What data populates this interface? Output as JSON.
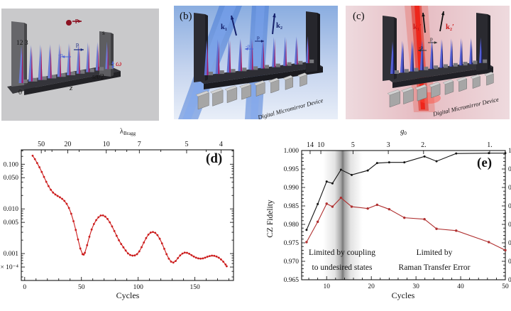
{
  "panels": {
    "a": {
      "site_numbers": "12 3",
      "wall_label": "s",
      "momentum_top": "p",
      "momentum_mid": "p",
      "momentum_neg": "-p",
      "omega": "ω",
      "width_label": "sπ/2",
      "axis_label": "z",
      "origin_label": "0",
      "spike_count": 10
    },
    "b": {
      "label": "(b)",
      "k1": "k₁",
      "k2": "k₂",
      "momentum": "p",
      "momentum_neg": "-p",
      "dmd": "Digital Micromirror Device",
      "spike_count": 10,
      "mirror_count": 8
    },
    "c": {
      "label": "(c)",
      "k1": "k₁′",
      "k2": "k₂′",
      "momentum": "p",
      "momentum_neg": "-p",
      "dmd": "Digital Micromirror Device",
      "spike_count": 10,
      "mirror_count": 8
    }
  },
  "chart_data": [
    {
      "id": "d",
      "type": "line",
      "panel_label": "(d)",
      "xlabel": "Cycles",
      "top_axis": {
        "base": "λ",
        "sub": "Bragg",
        "ticks": [
          {
            "label": "50",
            "x": 14.6
          },
          {
            "label": "20",
            "x": 37.9
          },
          {
            "label": "10",
            "x": 71.9
          },
          {
            "label": "7",
            "x": 101
          },
          {
            "label": "5",
            "x": 142.7
          },
          {
            "label": "4",
            "x": 173
          }
        ],
        "minor_x": [
          18,
          24,
          48,
          80,
          90,
          120,
          160
        ]
      },
      "x_axis": {
        "lim": [
          -3,
          184
        ],
        "ticks": [
          0,
          50,
          100,
          150
        ],
        "minor_step": 10
      },
      "y_axis": {
        "scale": "log",
        "lim": [
          0.00025,
          0.21
        ],
        "ticks": [
          {
            "label": "0.100",
            "v": 0.1
          },
          {
            "label": "0.050",
            "v": 0.05
          },
          {
            "label": "0.010",
            "v": 0.01
          },
          {
            "label": "0.005",
            "v": 0.005
          },
          {
            "label": "0.001",
            "v": 0.001
          },
          {
            "label": "× 10⁻⁴",
            "v": 0.0005
          }
        ]
      },
      "series": [
        {
          "name": "bragg-error",
          "color": "#cc1d1d",
          "marker_r": 1.4,
          "points": [
            [
              7,
              0.155
            ],
            [
              9,
              0.13
            ],
            [
              11,
              0.106
            ],
            [
              13,
              0.0855
            ],
            [
              15,
              0.0672
            ],
            [
              17,
              0.052
            ],
            [
              19,
              0.0405
            ],
            [
              21,
              0.0323
            ],
            [
              23,
              0.0268
            ],
            [
              25,
              0.0232
            ],
            [
              27,
              0.021
            ],
            [
              29,
              0.0195
            ],
            [
              31,
              0.0182
            ],
            [
              33,
              0.0168
            ],
            [
              35,
              0.0151
            ],
            [
              37,
              0.013
            ],
            [
              39,
              0.0105
            ],
            [
              41,
              0.0078
            ],
            [
              43,
              0.0053
            ],
            [
              45,
              0.00338
            ],
            [
              47,
              0.00207
            ],
            [
              49,
              0.0013
            ],
            [
              51,
              0.00097
            ],
            [
              52,
              0.00095
            ],
            [
              53,
              0.00104
            ],
            [
              55,
              0.00154
            ],
            [
              57,
              0.00238
            ],
            [
              59,
              0.00346
            ],
            [
              61,
              0.00459
            ],
            [
              63,
              0.0056
            ],
            [
              65,
              0.0065
            ],
            [
              67,
              0.0071
            ],
            [
              69,
              0.00715
            ],
            [
              71,
              0.00672
            ],
            [
              73,
              0.00594
            ],
            [
              75,
              0.005
            ],
            [
              77,
              0.00405
            ],
            [
              79,
              0.00319
            ],
            [
              81,
              0.0025
            ],
            [
              83,
              0.00199
            ],
            [
              85,
              0.00164
            ],
            [
              87,
              0.00138
            ],
            [
              89,
              0.00117
            ],
            [
              91,
              0.00101
            ],
            [
              93,
              0.00093
            ],
            [
              95,
              0.0009
            ],
            [
              97,
              0.00091
            ],
            [
              99,
              0.00097
            ],
            [
              101,
              0.00112
            ],
            [
              103,
              0.00139
            ],
            [
              105,
              0.00177
            ],
            [
              107,
              0.00222
            ],
            [
              109,
              0.00266
            ],
            [
              111,
              0.00295
            ],
            [
              113,
              0.00304
            ],
            [
              115,
              0.00291
            ],
            [
              117,
              0.00259
            ],
            [
              119,
              0.00215
            ],
            [
              121,
              0.00169
            ],
            [
              123,
              0.00128
            ],
            [
              125,
              0.00097
            ],
            [
              127,
              0.00077
            ],
            [
              129,
              0.00066
            ],
            [
              131,
              0.00063
            ],
            [
              133,
              0.00068
            ],
            [
              135,
              0.00079
            ],
            [
              137,
              0.00091
            ],
            [
              139,
              0.001
            ],
            [
              141,
              0.00105
            ],
            [
              143,
              0.00104
            ],
            [
              145,
              0.00099
            ],
            [
              147,
              0.00092
            ],
            [
              149,
              0.00086
            ],
            [
              151,
              0.00081
            ],
            [
              153,
              0.00078
            ],
            [
              155,
              0.00077
            ],
            [
              157,
              0.00078
            ],
            [
              159,
              0.00081
            ],
            [
              161,
              0.00085
            ],
            [
              163,
              0.00088
            ],
            [
              165,
              0.0009
            ],
            [
              167,
              0.00089
            ],
            [
              169,
              0.00086
            ],
            [
              171,
              0.00081
            ],
            [
              173,
              0.00074
            ],
            [
              175,
              0.00066
            ],
            [
              177,
              0.00057
            ],
            [
              178,
              0.00052
            ]
          ]
        }
      ]
    },
    {
      "id": "e",
      "type": "line",
      "panel_label": "(e)",
      "xlabel": "Cycles",
      "ylabel": "CZ Fidelity",
      "top_axis": {
        "base": "g",
        "sub": "0",
        "italic": true,
        "ticks": [
          {
            "label": "14",
            "x": 6.3
          },
          {
            "label": "10",
            "x": 8.7
          },
          {
            "label": "5",
            "x": 15.9
          },
          {
            "label": "3",
            "x": 23.8
          },
          {
            "label": "2.",
            "x": 31.7
          },
          {
            "label": "1.",
            "x": 46.5
          }
        ]
      },
      "x_axis": {
        "lim": [
          4.4,
          50
        ],
        "ticks": [
          10,
          20,
          30,
          40,
          50
        ],
        "minor_step": 2
      },
      "y_axis": {
        "scale": "linear",
        "lim": [
          0.965,
          1.0
        ],
        "minor_step": 0.001,
        "mirror_labels": true,
        "ticks": [
          {
            "label": "1.000",
            "v": 1.0
          },
          {
            "label": "0.995",
            "v": 0.995
          },
          {
            "label": "0.990",
            "v": 0.99
          },
          {
            "label": "0.985",
            "v": 0.985
          },
          {
            "label": "0.980",
            "v": 0.98
          },
          {
            "label": "0.975",
            "v": 0.975
          },
          {
            "label": "0.970",
            "v": 0.97
          },
          {
            "label": "0.965",
            "v": 0.965
          }
        ]
      },
      "band": {
        "from": 9.2,
        "to": 18,
        "color": "#606060"
      },
      "annotations": [
        {
          "lines": [
            "Limited by coupling",
            "to undesired states"
          ]
        },
        {
          "lines": [
            "Limited by",
            "Raman Transfer Error"
          ]
        }
      ],
      "series": [
        {
          "name": "upper-bound-fidelity",
          "color": "#141414",
          "marker_r": 1.5,
          "points": [
            [
              5.5,
              0.9785
            ],
            [
              8,
              0.9855
            ],
            [
              10,
              0.9916
            ],
            [
              11.3,
              0.9911
            ],
            [
              13.2,
              0.9948
            ],
            [
              15.6,
              0.9934
            ],
            [
              19.2,
              0.9946
            ],
            [
              21.3,
              0.9966
            ],
            [
              24,
              0.9968
            ],
            [
              27.4,
              0.9968
            ],
            [
              31.9,
              0.9984
            ],
            [
              34.6,
              0.9971
            ],
            [
              39,
              0.9992
            ],
            [
              46.3,
              0.9993
            ],
            [
              50,
              0.9993
            ]
          ]
        },
        {
          "name": "achieved-fidelity",
          "color": "#b03030",
          "marker_r": 1.7,
          "points": [
            [
              5.5,
              0.9752
            ],
            [
              8,
              0.9807
            ],
            [
              10,
              0.9856
            ],
            [
              11.3,
              0.9848
            ],
            [
              13.2,
              0.9872
            ],
            [
              15.6,
              0.9848
            ],
            [
              19.2,
              0.9843
            ],
            [
              21.3,
              0.9853
            ],
            [
              24,
              0.9841
            ],
            [
              27.4,
              0.9818
            ],
            [
              31.9,
              0.9814
            ],
            [
              34.6,
              0.9788
            ],
            [
              39,
              0.9783
            ],
            [
              46.3,
              0.9752
            ],
            [
              50,
              0.973
            ]
          ]
        }
      ]
    }
  ]
}
